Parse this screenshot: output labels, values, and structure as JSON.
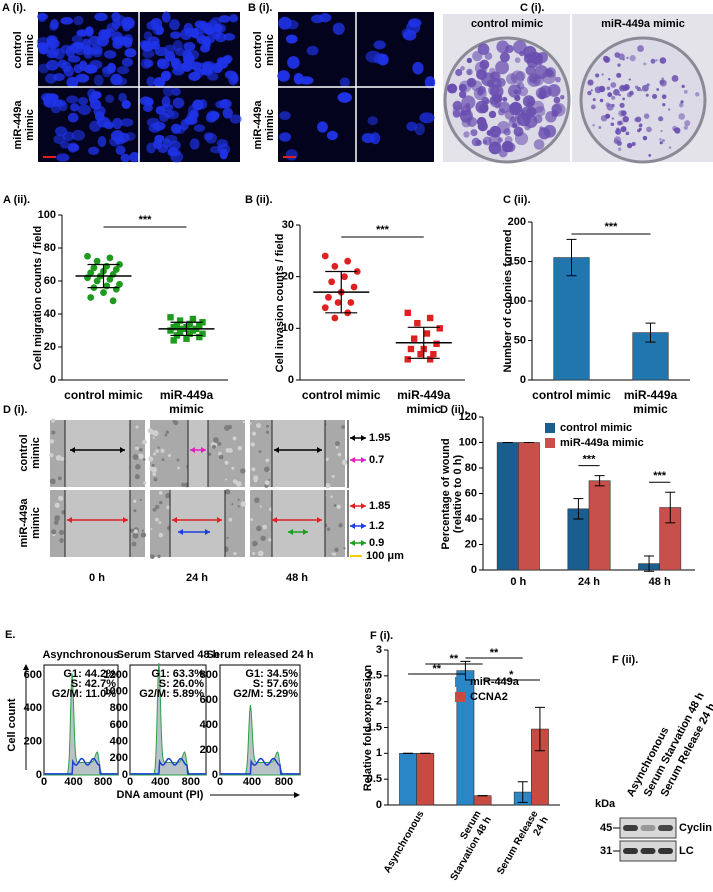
{
  "panels": {
    "A_i": {
      "label": "A (i).",
      "rows": [
        "control mimic",
        "miR-449a mimic"
      ]
    },
    "B_i": {
      "label": "B (i).",
      "rows": [
        "control mimic",
        "miR-449a mimic"
      ]
    },
    "C_i": {
      "label": "C (i).",
      "columns": [
        "control mimic",
        "miR-449a mimic"
      ]
    },
    "D_i": {
      "label": "D (i).",
      "rows": [
        "control mimic",
        "miR-449a mimic"
      ],
      "columns": [
        "0 h",
        "24 h",
        "48 h"
      ],
      "widths": [
        "1.95",
        "0.7",
        "1.85",
        "1.2",
        "0.9"
      ],
      "scale_bar": "100 μm"
    },
    "E": {
      "label": "E.",
      "ylabel": "Cell count",
      "xlabel": "DNA amount (PI)",
      "histograms": [
        {
          "title": "Asynchronous",
          "stats": [
            "G1: 44.2%",
            "S: 42.7%",
            "G2/M: 11.0%"
          ],
          "yticks": [
            0,
            200,
            400,
            600
          ],
          "xticks": [
            0,
            400,
            800
          ]
        },
        {
          "title": "Serum Starved 48 h",
          "stats": [
            "G1: 63.3%",
            "S: 26.0%",
            "G2/M: 5.89%"
          ],
          "yticks": [
            0,
            200,
            400,
            600,
            800,
            1000,
            1200
          ],
          "xticks": [
            0,
            400,
            800
          ]
        },
        {
          "title": "Serum released 24 h",
          "stats": [
            "G1: 34.5%",
            "S: 57.6%",
            "G2/M: 5.29%"
          ],
          "yticks": [
            0,
            200,
            400,
            600,
            800
          ],
          "xticks": [
            0,
            400,
            800
          ]
        }
      ]
    },
    "F_ii": {
      "label": "F (ii).",
      "lanes": [
        "Asynchronous",
        "Serum Starvation 48 h",
        "Serum Release 24 h"
      ],
      "unit": "kDa",
      "markers": [
        "45",
        "31"
      ],
      "bands": [
        "Cyclin A2",
        "LC"
      ]
    }
  },
  "chart_data": [
    {
      "type": "dot",
      "label": "A (ii).",
      "ylabel": "Cell migration counts / field",
      "categories": [
        "control mimic",
        "miR-449a mimic"
      ],
      "color": "#1e9a1e",
      "markers": [
        "circle",
        "square"
      ],
      "groups": [
        {
          "values": [
            75,
            74,
            72,
            70,
            69,
            68,
            67,
            66,
            65,
            64,
            63,
            62,
            61,
            60,
            58,
            57,
            56,
            55,
            53,
            50,
            48
          ],
          "mean": 63,
          "sd": 7
        },
        {
          "values": [
            38,
            37,
            36,
            35,
            34,
            33,
            33,
            32,
            32,
            31,
            31,
            30,
            30,
            29,
            28,
            28,
            27,
            26,
            25,
            24
          ],
          "mean": 31,
          "sd": 4
        }
      ],
      "ylim": [
        0,
        100
      ],
      "yticks": [
        0,
        20,
        40,
        60,
        80,
        100
      ],
      "annotation": "***"
    },
    {
      "type": "dot",
      "label": "B (ii).",
      "ylabel": "Cell invasion counts / field",
      "categories": [
        "control mimic",
        "miR-449a mimic"
      ],
      "color": "#e02020",
      "markers": [
        "circle",
        "square"
      ],
      "groups": [
        {
          "values": [
            24,
            23,
            22,
            21,
            20,
            19,
            18,
            17,
            16,
            15,
            15,
            14,
            13,
            12
          ],
          "mean": 17,
          "sd": 4
        },
        {
          "values": [
            13,
            12,
            11,
            10,
            9,
            8,
            7,
            6,
            6,
            5,
            5,
            4,
            4
          ],
          "mean": 7.2,
          "sd": 3
        }
      ],
      "ylim": [
        0,
        30
      ],
      "yticks": [
        0,
        10,
        20,
        30
      ],
      "annotation": "***"
    },
    {
      "type": "bar",
      "label": "C (ii).",
      "ylabel": "Number of colonies formed",
      "categories": [
        "control mimic",
        "miR-449a mimic"
      ],
      "values": [
        155,
        60
      ],
      "errors": [
        23,
        12
      ],
      "color": "#2176ae",
      "ylim": [
        0,
        200
      ],
      "yticks": [
        0,
        50,
        100,
        150,
        200
      ],
      "annotation": "***"
    },
    {
      "type": "bar",
      "label": "D (ii).",
      "ylabel": "Percentage of wound (relative to 0 h)",
      "categories": [
        "0 h",
        "24 h",
        "48 h"
      ],
      "series": [
        {
          "name": "control mimic",
          "color": "#1a5d8f",
          "values": [
            100,
            48,
            5
          ],
          "errors": [
            0,
            8,
            6
          ]
        },
        {
          "name": "miR-449a mimic",
          "color": "#c8504a",
          "values": [
            100,
            70,
            49
          ],
          "errors": [
            0,
            4,
            12
          ]
        }
      ],
      "ylim": [
        0,
        120
      ],
      "yticks": [
        0,
        20,
        40,
        60,
        80,
        100,
        120
      ],
      "significance": [
        null,
        "***",
        "***"
      ]
    },
    {
      "type": "bar",
      "label": "F (i).",
      "ylabel": "Relative fold expression",
      "categories": [
        "Asynchronous",
        "Serum Starvation 48 h",
        "Serum Release 24 h"
      ],
      "series": [
        {
          "name": "miR-449a",
          "color": "#2a86c4",
          "values": [
            1,
            2.6,
            0.25
          ],
          "errors": [
            0,
            0.18,
            0.2
          ]
        },
        {
          "name": "CCNA2",
          "color": "#c84a40",
          "values": [
            1,
            0.18,
            1.47
          ],
          "errors": [
            0,
            0,
            0.42
          ]
        }
      ],
      "ylim": [
        0,
        3
      ],
      "yticks": [
        0,
        0.5,
        1,
        1.5,
        2,
        2.5,
        3
      ],
      "brackets": [
        "**",
        "**",
        "**",
        "*"
      ]
    }
  ]
}
